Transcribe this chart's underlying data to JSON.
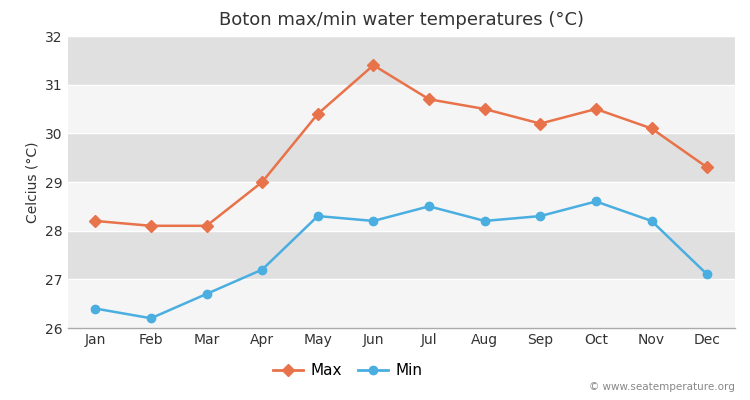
{
  "title": "Boton max/min water temperatures (°C)",
  "ylabel": "Celcius (°C)",
  "months": [
    "Jan",
    "Feb",
    "Mar",
    "Apr",
    "May",
    "Jun",
    "Jul",
    "Aug",
    "Sep",
    "Oct",
    "Nov",
    "Dec"
  ],
  "max_temps": [
    28.2,
    28.1,
    28.1,
    29.0,
    30.4,
    31.4,
    30.7,
    30.5,
    30.2,
    30.5,
    30.1,
    29.3
  ],
  "min_temps": [
    26.4,
    26.2,
    26.7,
    27.2,
    28.3,
    28.2,
    28.5,
    28.2,
    28.3,
    28.6,
    28.2,
    27.1
  ],
  "max_color": "#e8724a",
  "min_color": "#4aaee0",
  "fig_bg_color": "#ffffff",
  "plot_bg_color": "#ebebeb",
  "band_color_light": "#f5f5f5",
  "band_color_dark": "#e0e0e0",
  "ylim": [
    26,
    32
  ],
  "yticks": [
    26,
    27,
    28,
    29,
    30,
    31,
    32
  ],
  "grid_color": "#ffffff",
  "bottom_axis_color": "#aaaaaa",
  "watermark": "© www.seatemperature.org",
  "legend_labels": [
    "Max",
    "Min"
  ],
  "title_fontsize": 13,
  "label_fontsize": 10,
  "tick_fontsize": 10,
  "linewidth": 1.8,
  "markersize": 6,
  "legend_fontsize": 11
}
